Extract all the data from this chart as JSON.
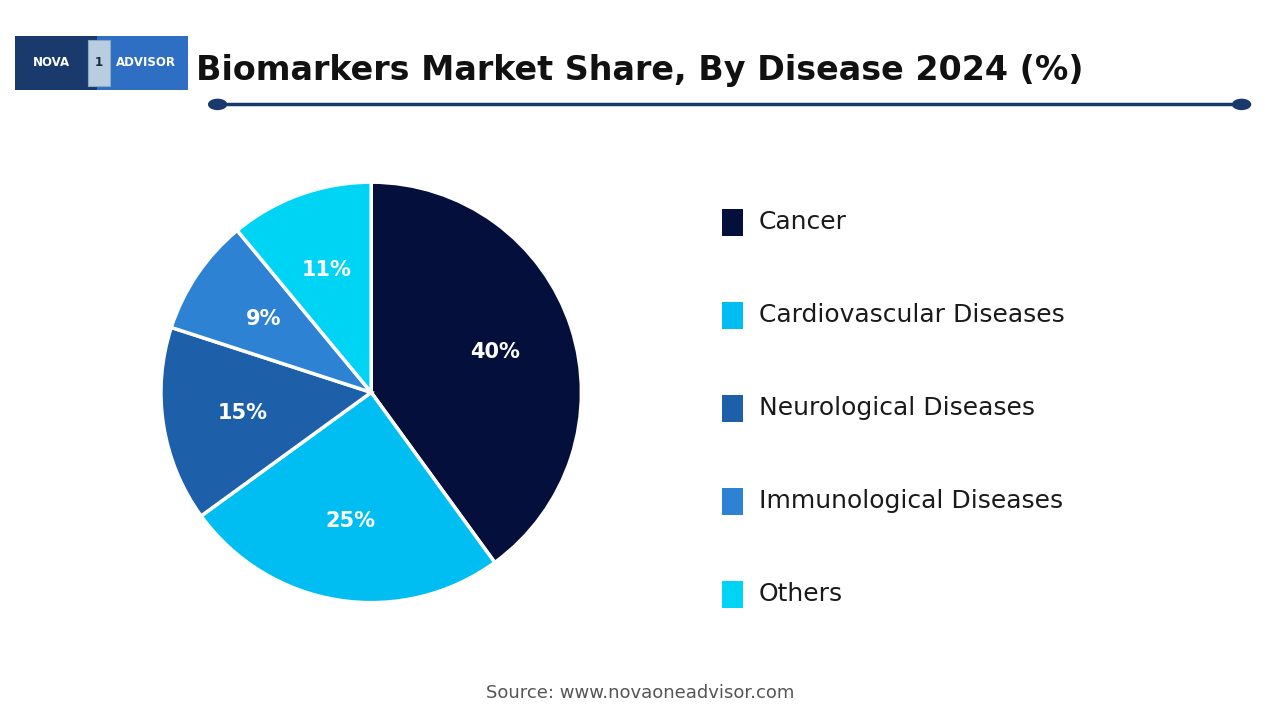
{
  "title": "Biomarkers Market Share, By Disease 2024 (%)",
  "source": "Source: www.novaoneadvisor.com",
  "slices": [
    40,
    25,
    15,
    9,
    11
  ],
  "labels": [
    "Cancer",
    "Cardiovascular Diseases",
    "Neurological Diseases",
    "Immunological Diseases",
    "Others"
  ],
  "pct_labels": [
    "40%",
    "25%",
    "15%",
    "9%",
    "11%"
  ],
  "colors": [
    "#04103b",
    "#00bef2",
    "#1e5faa",
    "#2e82d4",
    "#00d4f5"
  ],
  "legend_colors": [
    "#04103b",
    "#00bef2",
    "#1e5faa",
    "#2e82d4",
    "#00d4f5"
  ],
  "background_color": "#ffffff",
  "title_fontsize": 24,
  "source_fontsize": 13,
  "pct_fontsize": 15,
  "legend_fontsize": 18,
  "line_color": "#1a3a6e",
  "startangle": 90,
  "logo_left_color": "#1a3a6e",
  "logo_right_color": "#2e6fc4",
  "logo_box_color": "#b8cde0"
}
